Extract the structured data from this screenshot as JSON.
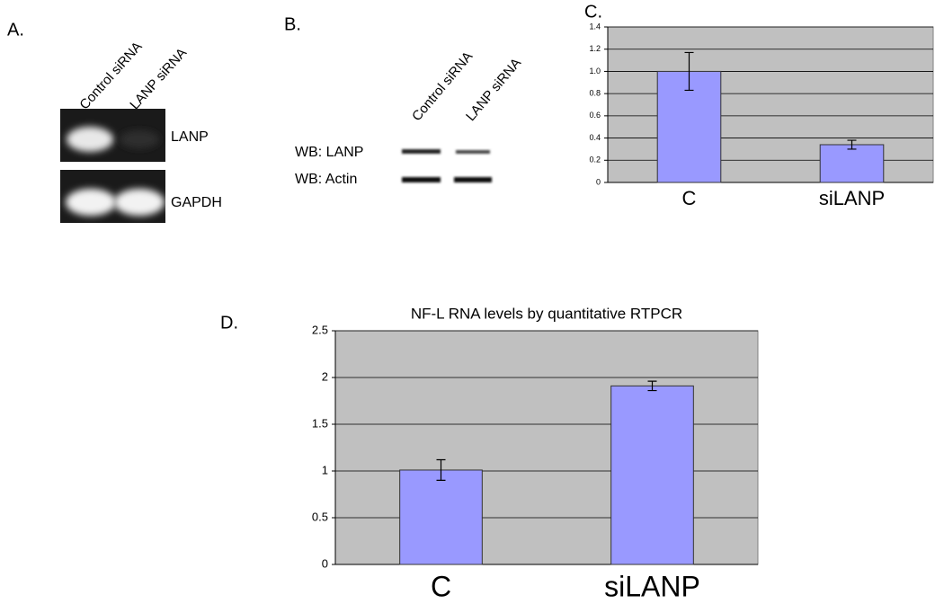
{
  "gels": [
    {
      "panel_label": "A.",
      "lanes": [
        "Control siRNA",
        "LANP siRNA"
      ],
      "bands": [
        "LANP",
        "GAPDH"
      ]
    },
    {
      "panel_label": "B.",
      "lanes": [
        "Control siRNA",
        "LANP siRNA"
      ],
      "bands": [
        "WB: LANP",
        "WB: Actin"
      ]
    }
  ],
  "chart_data": [
    {
      "type": "bar",
      "panel_label": "C.",
      "categories": [
        "C",
        "siLANP"
      ],
      "values": [
        1.0,
        0.34
      ],
      "errors": [
        0.17,
        0.04
      ],
      "color": "#9999ff",
      "ylim": [
        0,
        1.4
      ],
      "yticks": [
        0,
        0.2,
        0.4,
        0.6,
        0.8,
        {
          "value": 1,
          "label": "1.0"
        },
        1.2,
        1.4
      ],
      "grid": true
    },
    {
      "type": "bar",
      "panel_label": "D.",
      "title": "NF-L RNA levels by quantitative RTPCR",
      "categories": [
        "C",
        "siLANP"
      ],
      "values": [
        1.01,
        1.91
      ],
      "errors": [
        0.11,
        0.05
      ],
      "color": "#9999ff",
      "ylim": [
        0,
        2.5
      ],
      "yticks": [
        0,
        0.5,
        1,
        1.5,
        2,
        2.5
      ],
      "grid": true
    }
  ]
}
